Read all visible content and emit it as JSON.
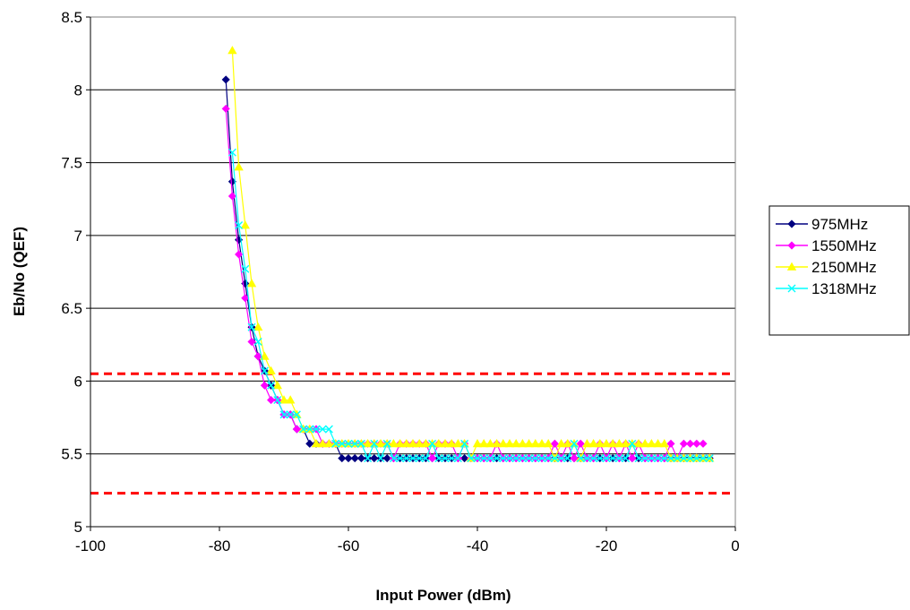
{
  "chart_data": {
    "type": "line",
    "xlabel": "Input Power (dBm)",
    "ylabel": "Eb/No (QEF)",
    "xlim": [
      -100,
      0
    ],
    "ylim": [
      5,
      8.5
    ],
    "x_ticks": [
      "-100",
      "-80",
      "-60",
      "-40",
      "-20",
      "0"
    ],
    "y_ticks": [
      "5",
      "5.5",
      "6",
      "6.5",
      "7",
      "7.5",
      "8",
      "8.5"
    ],
    "grid": "horizontal major gridlines",
    "legend_position": "right",
    "reference_lines": [
      {
        "y": 6.05,
        "color": "#ff0000",
        "style": "dashed"
      },
      {
        "y": 5.23,
        "color": "#ff0000",
        "style": "dashed"
      }
    ],
    "series": [
      {
        "name": "975MHz",
        "color": "#000080",
        "marker": "diamond",
        "x": [
          -79,
          -78,
          -77,
          -76,
          -75,
          -74,
          -73,
          -72,
          -71,
          -70,
          -69,
          -68,
          -67,
          -66,
          -65,
          -64,
          -63,
          -62,
          -61,
          -60,
          -59,
          -58,
          -57,
          -56,
          -55,
          -54,
          -53,
          -52,
          -51,
          -50,
          -49,
          -48,
          -47,
          -46,
          -45,
          -44,
          -43,
          -42,
          -41,
          -40,
          -39,
          -38,
          -37,
          -36,
          -35,
          -34,
          -33,
          -32,
          -31,
          -30,
          -29,
          -28,
          -27,
          -26,
          -25,
          -24,
          -23,
          -22,
          -21,
          -20,
          -19,
          -18,
          -17,
          -16,
          -15,
          -14,
          -13,
          -12,
          -11,
          -10,
          -9,
          -8,
          -7,
          -6,
          -5,
          -4
        ],
        "y": [
          8.07,
          7.37,
          6.97,
          6.67,
          6.37,
          6.17,
          6.07,
          5.97,
          5.87,
          5.77,
          5.77,
          5.67,
          5.67,
          5.57,
          5.57,
          5.57,
          5.57,
          5.57,
          5.47,
          5.47,
          5.47,
          5.47,
          5.47,
          5.47,
          5.47,
          5.47,
          5.47,
          5.47,
          5.47,
          5.47,
          5.47,
          5.47,
          5.47,
          5.47,
          5.47,
          5.47,
          5.47,
          5.47,
          5.47,
          5.47,
          5.47,
          5.47,
          5.47,
          5.47,
          5.47,
          5.47,
          5.47,
          5.47,
          5.47,
          5.47,
          5.47,
          5.47,
          5.47,
          5.47,
          5.47,
          5.47,
          5.47,
          5.47,
          5.47,
          5.47,
          5.47,
          5.47,
          5.47,
          5.47,
          5.47,
          5.47,
          5.47,
          5.47,
          5.47,
          5.47,
          5.47,
          5.47,
          5.47,
          5.47,
          5.47,
          5.47
        ]
      },
      {
        "name": "1550MHz",
        "color": "#ff00ff",
        "marker": "diamond",
        "x": [
          -79,
          -78,
          -77,
          -76,
          -75,
          -74,
          -73,
          -72,
          -71,
          -70,
          -69,
          -68,
          -67,
          -66,
          -65,
          -64,
          -63,
          -62,
          -61,
          -60,
          -59,
          -58,
          -57,
          -56,
          -55,
          -54,
          -53,
          -52,
          -51,
          -50,
          -49,
          -48,
          -47,
          -46,
          -45,
          -44,
          -43,
          -42,
          -41,
          -40,
          -39,
          -38,
          -37,
          -36,
          -35,
          -34,
          -33,
          -32,
          -31,
          -30,
          -29,
          -28,
          -27,
          -26,
          -25,
          -24,
          -23,
          -22,
          -21,
          -20,
          -19,
          -18,
          -17,
          -16,
          -15,
          -14,
          -13,
          -12,
          -11,
          -10,
          -9,
          -8,
          -7,
          -6,
          -5
        ],
        "y": [
          7.87,
          7.27,
          6.87,
          6.57,
          6.27,
          6.17,
          5.97,
          5.87,
          5.87,
          5.77,
          5.77,
          5.67,
          5.67,
          5.67,
          5.67,
          5.57,
          5.57,
          5.57,
          5.57,
          5.57,
          5.57,
          5.57,
          5.57,
          5.57,
          5.57,
          5.57,
          5.47,
          5.57,
          5.57,
          5.57,
          5.57,
          5.57,
          5.47,
          5.57,
          5.57,
          5.57,
          5.47,
          5.57,
          5.47,
          5.47,
          5.47,
          5.47,
          5.57,
          5.47,
          5.47,
          5.47,
          5.47,
          5.47,
          5.47,
          5.47,
          5.47,
          5.57,
          5.47,
          5.57,
          5.47,
          5.57,
          5.47,
          5.47,
          5.57,
          5.47,
          5.57,
          5.47,
          5.57,
          5.47,
          5.57,
          5.47,
          5.47,
          5.47,
          5.47,
          5.57,
          5.47,
          5.57,
          5.57,
          5.57,
          5.57
        ]
      },
      {
        "name": "2150MHz",
        "color": "#ffff00",
        "marker": "triangle",
        "x": [
          -78,
          -77,
          -76,
          -75,
          -74,
          -73,
          -72,
          -71,
          -70,
          -69,
          -68,
          -67,
          -66,
          -65,
          -64,
          -63,
          -62,
          -61,
          -60,
          -59,
          -58,
          -57,
          -56,
          -55,
          -54,
          -53,
          -52,
          -51,
          -50,
          -49,
          -48,
          -47,
          -46,
          -45,
          -44,
          -43,
          -42,
          -41,
          -40,
          -39,
          -38,
          -37,
          -36,
          -35,
          -34,
          -33,
          -32,
          -31,
          -30,
          -29,
          -28,
          -27,
          -26,
          -25,
          -24,
          -23,
          -22,
          -21,
          -20,
          -19,
          -18,
          -17,
          -16,
          -15,
          -14,
          -13,
          -12,
          -11,
          -10,
          -9,
          -8,
          -7,
          -6,
          -5,
          -4
        ],
        "y": [
          8.27,
          7.47,
          7.07,
          6.67,
          6.37,
          6.17,
          6.07,
          5.97,
          5.87,
          5.87,
          5.77,
          5.67,
          5.67,
          5.57,
          5.57,
          5.57,
          5.57,
          5.57,
          5.57,
          5.57,
          5.57,
          5.57,
          5.57,
          5.57,
          5.57,
          5.57,
          5.57,
          5.57,
          5.57,
          5.57,
          5.57,
          5.57,
          5.57,
          5.57,
          5.57,
          5.57,
          5.57,
          5.47,
          5.57,
          5.57,
          5.57,
          5.57,
          5.57,
          5.57,
          5.57,
          5.57,
          5.57,
          5.57,
          5.57,
          5.57,
          5.47,
          5.57,
          5.57,
          5.57,
          5.47,
          5.57,
          5.57,
          5.57,
          5.57,
          5.57,
          5.57,
          5.57,
          5.57,
          5.57,
          5.57,
          5.57,
          5.57,
          5.57,
          5.47,
          5.47,
          5.47,
          5.47,
          5.47,
          5.47,
          5.47
        ]
      },
      {
        "name": "1318MHz",
        "color": "#00ffff",
        "marker": "x",
        "x": [
          -78,
          -77,
          -76,
          -75,
          -74,
          -73,
          -72,
          -71,
          -70,
          -69,
          -68,
          -67,
          -66,
          -65,
          -64,
          -63,
          -62,
          -61,
          -60,
          -59,
          -58,
          -57,
          -56,
          -55,
          -54,
          -53,
          -52,
          -51,
          -50,
          -49,
          -48,
          -47,
          -46,
          -45,
          -44,
          -43,
          -42,
          -41,
          -40,
          -39,
          -38,
          -37,
          -36,
          -35,
          -34,
          -33,
          -32,
          -31,
          -30,
          -29,
          -28,
          -27,
          -26,
          -25,
          -24,
          -23,
          -22,
          -21,
          -20,
          -19,
          -18,
          -17,
          -16,
          -15,
          -14,
          -13,
          -12,
          -11,
          -10,
          -9,
          -8,
          -7,
          -6,
          -5,
          -4
        ],
        "y": [
          7.57,
          7.07,
          6.77,
          6.37,
          6.27,
          6.07,
          5.97,
          5.87,
          5.77,
          5.77,
          5.77,
          5.67,
          5.67,
          5.67,
          5.67,
          5.67,
          5.57,
          5.57,
          5.57,
          5.57,
          5.57,
          5.47,
          5.57,
          5.47,
          5.57,
          5.47,
          5.47,
          5.47,
          5.47,
          5.47,
          5.47,
          5.57,
          5.47,
          5.47,
          5.47,
          5.47,
          5.57,
          5.47,
          5.47,
          5.47,
          5.47,
          5.47,
          5.47,
          5.47,
          5.47,
          5.47,
          5.47,
          5.47,
          5.47,
          5.47,
          5.47,
          5.47,
          5.47,
          5.57,
          5.47,
          5.47,
          5.47,
          5.47,
          5.47,
          5.47,
          5.47,
          5.47,
          5.57,
          5.47,
          5.47,
          5.47,
          5.47,
          5.47,
          5.47,
          5.47,
          5.47,
          5.47,
          5.47,
          5.47,
          5.47
        ]
      }
    ]
  }
}
